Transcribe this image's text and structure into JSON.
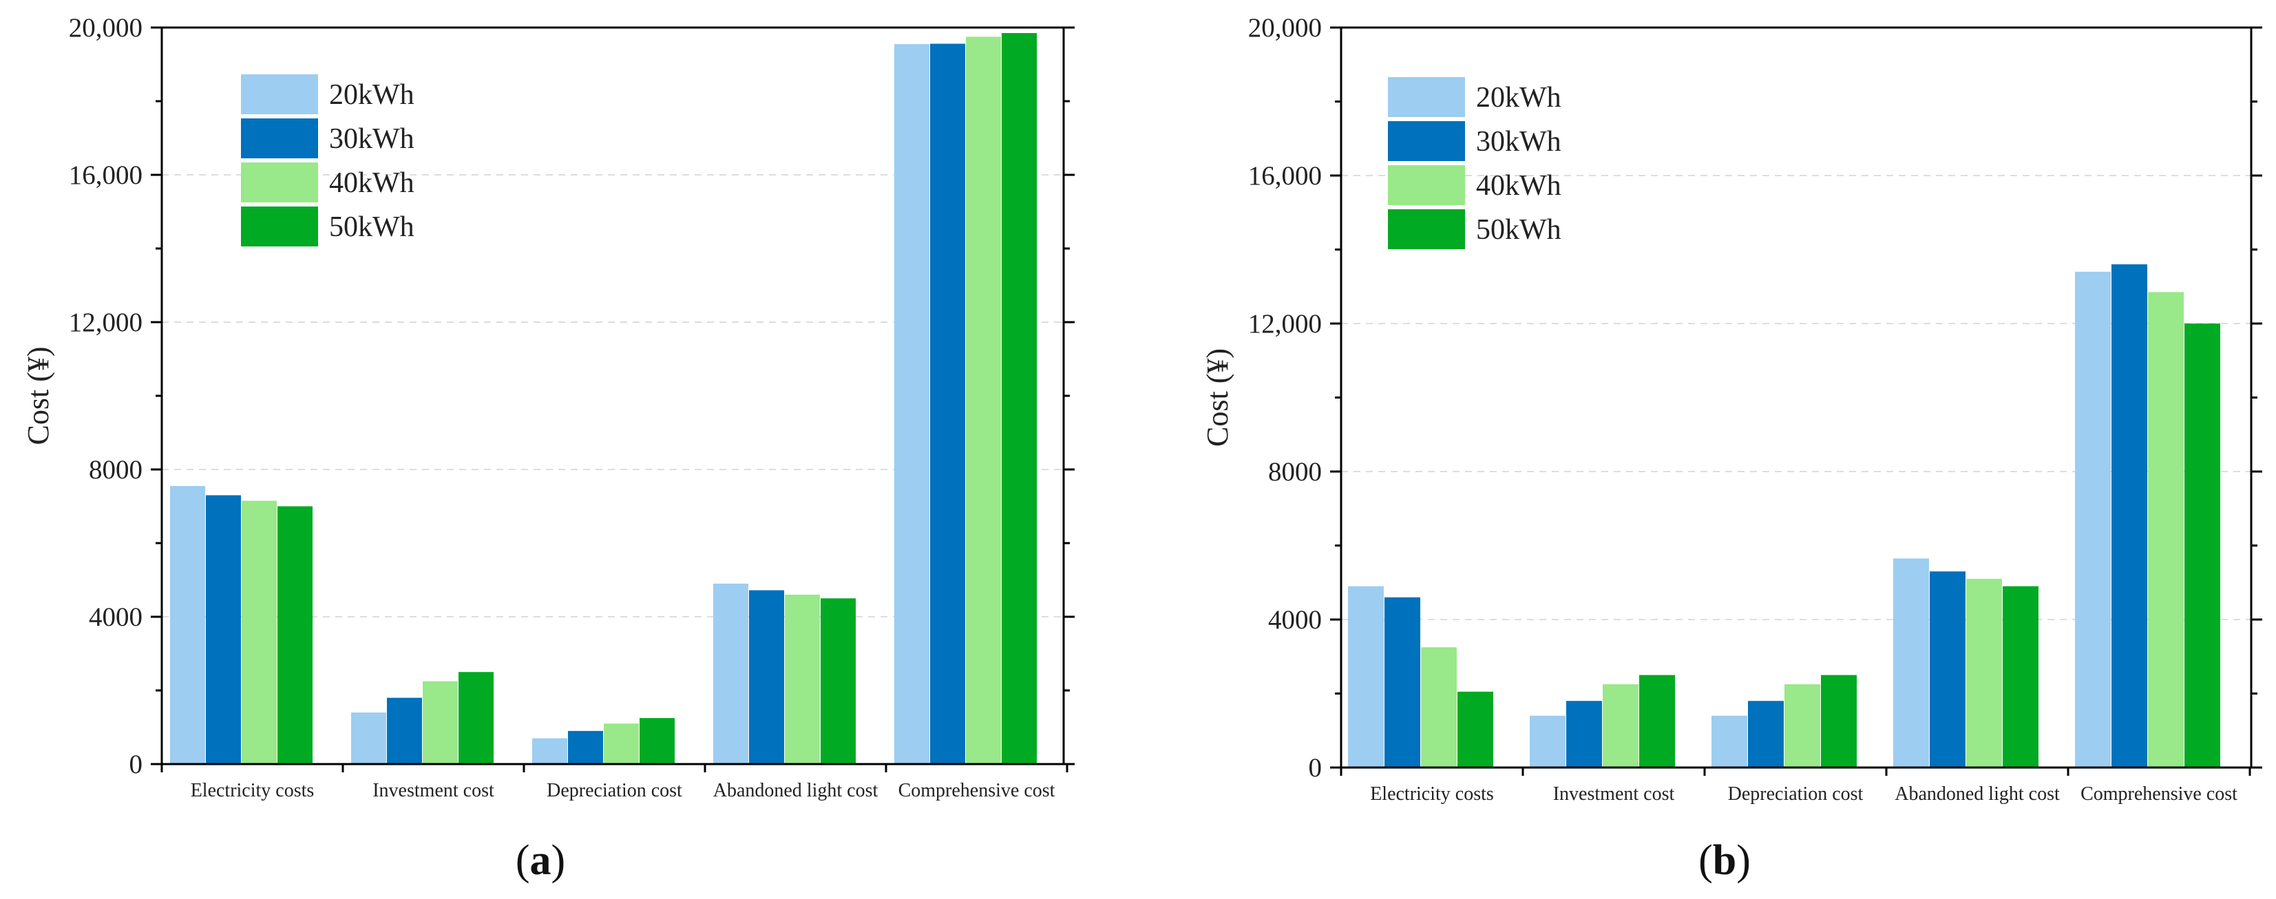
{
  "colors": {
    "20kWh": "#9dcdf0",
    "30kWh": "#0071bc",
    "40kWh": "#99e88a",
    "50kWh": "#00aa22",
    "grid": "#dddddd",
    "axis": "#000000"
  },
  "chart_data": [
    {
      "type": "bar",
      "panel_label": {
        "open": "(",
        "letter": "a",
        "close": ")"
      },
      "ylabel": "Cost (¥)",
      "ylim": [
        0,
        20000
      ],
      "yticks": [
        "0",
        "4000",
        "8000",
        "12,000",
        "16,000",
        "20,000"
      ],
      "ytick_values": [
        0,
        4000,
        8000,
        12000,
        16000,
        20000
      ],
      "grid": true,
      "legend": "top-left",
      "categories": [
        "Electricity costs",
        "Investment cost",
        "Depreciation cost",
        "Abandoned light cost",
        "Comprehensive cost"
      ],
      "series": [
        {
          "name": "20kWh",
          "values": [
            7550,
            1400,
            700,
            4900,
            19550
          ]
        },
        {
          "name": "30kWh",
          "values": [
            7300,
            1800,
            900,
            4720,
            19560
          ]
        },
        {
          "name": "40kWh",
          "values": [
            7150,
            2250,
            1100,
            4600,
            19750
          ]
        },
        {
          "name": "50kWh",
          "values": [
            7000,
            2500,
            1250,
            4500,
            19850
          ]
        }
      ]
    },
    {
      "type": "bar",
      "panel_label": {
        "open": "(",
        "letter": "b",
        "close": ")"
      },
      "ylabel": "Cost (¥)",
      "ylim": [
        0,
        20000
      ],
      "yticks": [
        "0",
        "4000",
        "8000",
        "12,000",
        "16,000",
        "20,000"
      ],
      "ytick_values": [
        0,
        4000,
        8000,
        12000,
        16000,
        20000
      ],
      "grid": true,
      "legend": "top-left",
      "categories": [
        "Electricity costs",
        "Investment cost",
        "Depreciation cost",
        "Abandoned light cost",
        "Comprehensive cost"
      ],
      "series": [
        {
          "name": "20kWh",
          "values": [
            4900,
            1400,
            1400,
            5650,
            13400
          ]
        },
        {
          "name": "30kWh",
          "values": [
            4600,
            1800,
            1800,
            5300,
            13600
          ]
        },
        {
          "name": "40kWh",
          "values": [
            3250,
            2250,
            2250,
            5100,
            12850
          ]
        },
        {
          "name": "50kWh",
          "values": [
            2050,
            2500,
            2500,
            4900,
            12000
          ]
        }
      ]
    }
  ]
}
